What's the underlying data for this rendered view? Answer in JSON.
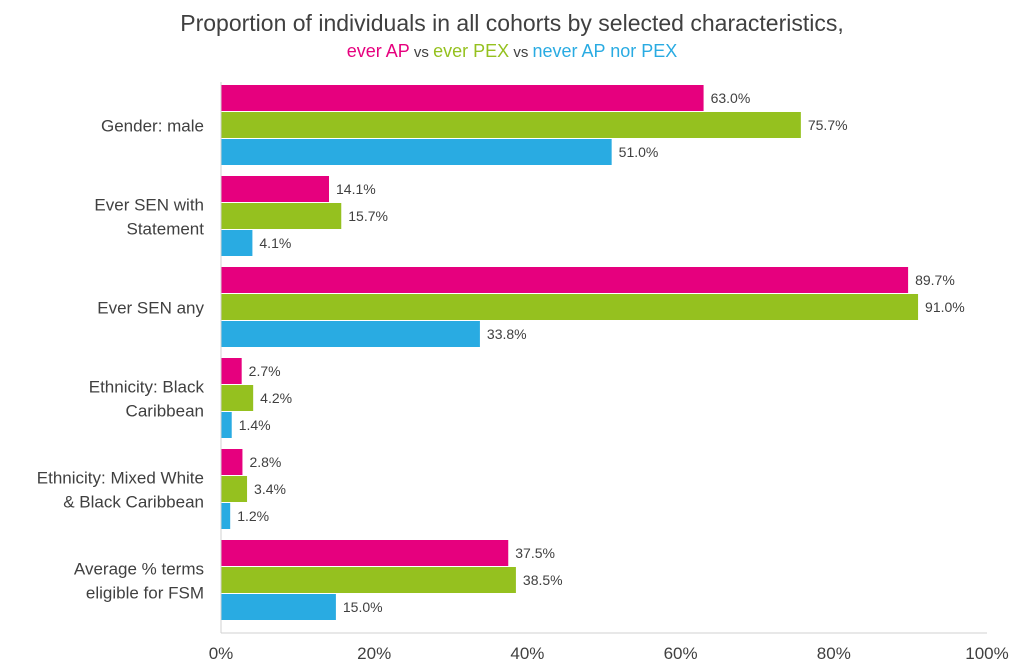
{
  "chart_data": {
    "type": "bar",
    "orientation": "horizontal",
    "title": "Proportion of individuals in all cohorts by selected characteristics,",
    "subtitle_parts": [
      {
        "text": "ever AP",
        "color": "#e6007e"
      },
      {
        "text": " vs ",
        "color": "#404040"
      },
      {
        "text": "ever PEX",
        "color": "#95c11f"
      },
      {
        "text": " vs ",
        "color": "#404040"
      },
      {
        "text": "never AP nor PEX",
        "color": "#29abe2"
      }
    ],
    "categories": [
      [
        "Gender: male"
      ],
      [
        "Ever SEN with",
        "Statement"
      ],
      [
        "Ever SEN any"
      ],
      [
        "Ethnicity: Black",
        "Caribbean"
      ],
      [
        "Ethnicity: Mixed White",
        "& Black Caribbean"
      ],
      [
        "Average % terms",
        "eligible for FSM"
      ]
    ],
    "series": [
      {
        "color": "#e6007e",
        "values": [
          63.0,
          14.1,
          89.7,
          2.7,
          2.8,
          37.5
        ]
      },
      {
        "color": "#95c11f",
        "values": [
          75.7,
          15.7,
          91.0,
          4.2,
          3.4,
          38.5
        ]
      },
      {
        "color": "#29abe2",
        "values": [
          51.0,
          4.1,
          33.8,
          1.4,
          1.2,
          15.0
        ]
      }
    ],
    "value_labels": [
      [
        "63.0%",
        "14.1%",
        "89.7%",
        "2.7%",
        "2.8%",
        "37.5%"
      ],
      [
        "75.7%",
        "15.7%",
        "91.0%",
        "4.2%",
        "3.4%",
        "38.5%"
      ],
      [
        "51.0%",
        "4.1%",
        "33.8%",
        "1.4%",
        "1.2%",
        "15.0%"
      ]
    ],
    "xlim": [
      0,
      100
    ],
    "xticks": [
      "0%",
      "20%",
      "40%",
      "60%",
      "80%",
      "100%"
    ],
    "grid": false,
    "legend": "none"
  }
}
